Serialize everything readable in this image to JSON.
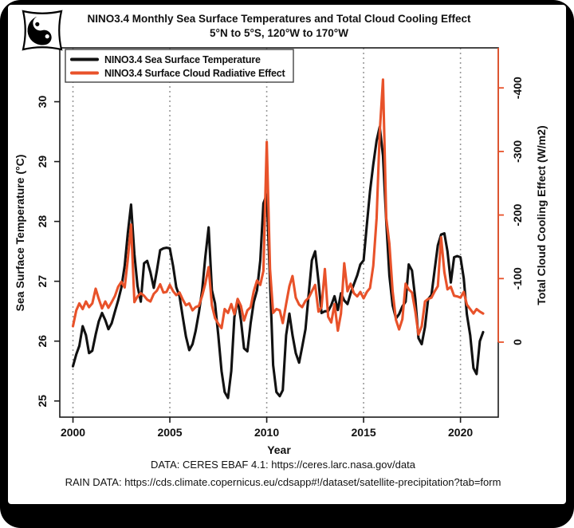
{
  "title": {
    "line1": "NINO3.4 Monthly Sea Surface Temperatures and Total Cloud Cooling Effect",
    "line2": "5°N to 5°S, 120°W to 170°W"
  },
  "legend": {
    "items": [
      {
        "label": "NINO3.4 Sea Surface Temperature",
        "color": "#111111"
      },
      {
        "label": "NINO3.4 Surface Cloud Radiative Effect",
        "color": "#E8522A"
      }
    ]
  },
  "footer": {
    "line1": "DATA: CERES EBAF 4.1: https://ceres.larc.nasa.gov/data",
    "line2": "RAIN DATA: https://cds.climate.copernicus.eu/cdsapp#!/dataset/satellite-precipitation?tab=form"
  },
  "colors": {
    "accent": "#E8522A",
    "line_black": "#111111",
    "grid": "#999999",
    "box": "#1a1a1a",
    "frame_background": "#000000",
    "sheet_background": "#ffffff"
  },
  "chart_data": {
    "type": "line",
    "title": "NINO3.4 Monthly Sea Surface Temperatures and Total Cloud Cooling Effect",
    "subtitle": "5°N to 5°S, 120°W to 170°W",
    "xlabel": "Year",
    "ylabel_left": "Sea Surface Temperature (°C)",
    "ylabel_right": "Total Cloud Cooling Effect (W/m2)",
    "legend_position": "top-left",
    "x_ticks": [
      2000,
      2005,
      2010,
      2015,
      2020
    ],
    "y_left_ticks": [
      25,
      26,
      27,
      28,
      29,
      30
    ],
    "y_right_ticks": [
      0,
      -100,
      -200,
      -300,
      -400
    ],
    "xlim": [
      1999.32,
      2021.95
    ],
    "ylim_left": [
      24.73,
      30.9
    ],
    "ylim_right": [
      118,
      -463
    ],
    "grid": {
      "vertical_dotted_at": [
        2000,
        2005,
        2010,
        2015,
        2020
      ],
      "color": "#999999"
    },
    "x": [
      2000,
      2000.17,
      2000.33,
      2000.5,
      2000.67,
      2000.83,
      2001,
      2001.17,
      2001.33,
      2001.5,
      2001.67,
      2001.83,
      2002,
      2002.17,
      2002.33,
      2002.5,
      2002.67,
      2002.83,
      2003,
      2003.17,
      2003.33,
      2003.5,
      2003.67,
      2003.83,
      2004,
      2004.17,
      2004.33,
      2004.5,
      2004.67,
      2004.83,
      2005,
      2005.17,
      2005.33,
      2005.5,
      2005.67,
      2005.83,
      2006,
      2006.17,
      2006.33,
      2006.5,
      2006.67,
      2006.83,
      2007,
      2007.17,
      2007.33,
      2007.5,
      2007.67,
      2007.83,
      2008,
      2008.17,
      2008.33,
      2008.5,
      2008.67,
      2008.83,
      2009,
      2009.17,
      2009.33,
      2009.5,
      2009.67,
      2009.83,
      2010,
      2010.17,
      2010.33,
      2010.5,
      2010.67,
      2010.83,
      2011,
      2011.17,
      2011.33,
      2011.5,
      2011.67,
      2011.83,
      2012,
      2012.17,
      2012.33,
      2012.5,
      2012.67,
      2012.83,
      2013,
      2013.17,
      2013.33,
      2013.5,
      2013.67,
      2013.83,
      2014,
      2014.17,
      2014.33,
      2014.5,
      2014.67,
      2014.83,
      2015,
      2015.17,
      2015.33,
      2015.5,
      2015.67,
      2015.83,
      2016,
      2016.17,
      2016.33,
      2016.5,
      2016.67,
      2016.83,
      2017,
      2017.17,
      2017.33,
      2017.5,
      2017.67,
      2017.83,
      2018,
      2018.17,
      2018.33,
      2018.5,
      2018.67,
      2018.83,
      2019,
      2019.17,
      2019.33,
      2019.5,
      2019.67,
      2019.83,
      2020,
      2020.17,
      2020.33,
      2020.5,
      2020.67,
      2020.83,
      2021,
      2021.17
    ],
    "series": [
      {
        "name": "NINO3.4 Sea Surface Temperature",
        "axis": "left",
        "units": "°C",
        "color": "#111111",
        "values": [
          25.58,
          25.78,
          25.92,
          26.25,
          26.1,
          25.8,
          25.84,
          26.11,
          26.33,
          26.47,
          26.35,
          26.2,
          26.3,
          26.5,
          26.68,
          26.9,
          27.26,
          27.8,
          28.28,
          27.45,
          26.92,
          26.66,
          27.3,
          27.34,
          27.15,
          26.89,
          27.18,
          27.52,
          27.55,
          27.56,
          27.55,
          27.25,
          26.9,
          26.75,
          26.4,
          26.08,
          25.85,
          25.95,
          26.17,
          26.48,
          26.85,
          27.4,
          27.9,
          26.85,
          26.63,
          26.1,
          25.5,
          25.15,
          25.05,
          25.5,
          26.4,
          26.7,
          26.35,
          25.88,
          25.83,
          26.3,
          26.65,
          26.85,
          27.35,
          28.3,
          28.45,
          27.0,
          25.6,
          25.15,
          25.08,
          25.18,
          26.1,
          26.46,
          26.1,
          25.8,
          25.64,
          25.9,
          26.2,
          26.8,
          27.35,
          27.5,
          27.0,
          26.47,
          26.5,
          26.5,
          26.6,
          26.75,
          26.52,
          26.8,
          26.68,
          26.62,
          26.8,
          26.95,
          27.1,
          27.28,
          27.35,
          27.95,
          28.5,
          28.95,
          29.35,
          29.58,
          29.1,
          28.0,
          27.1,
          26.6,
          26.38,
          26.45,
          26.58,
          26.66,
          27.28,
          27.18,
          26.7,
          26.05,
          25.95,
          26.24,
          26.7,
          26.77,
          27.2,
          27.6,
          27.78,
          27.8,
          27.5,
          26.98,
          27.4,
          27.42,
          27.4,
          27.05,
          26.45,
          26.1,
          25.55,
          25.45,
          26.0,
          26.15
        ]
      },
      {
        "name": "NINO3.4 Surface Cloud Radiative Effect",
        "axis": "right",
        "units": "W/m2",
        "color": "#E8522A",
        "values": [
          -25,
          -50,
          -61,
          -52,
          -64,
          -55,
          -61,
          -84,
          -68,
          -53,
          -64,
          -54,
          -63,
          -73,
          -87,
          -95,
          -86,
          -130,
          -185,
          -63,
          -72,
          -77,
          -73,
          -67,
          -64,
          -76,
          -81,
          -91,
          -78,
          -79,
          -90,
          -80,
          -74,
          -78,
          -67,
          -58,
          -61,
          -50,
          -55,
          -57,
          -73,
          -92,
          -118,
          -58,
          -38,
          -29,
          -22,
          -52,
          -46,
          -60,
          -44,
          -68,
          -57,
          -34,
          -50,
          -55,
          -80,
          -97,
          -90,
          -112,
          -315,
          -115,
          -46,
          -52,
          -50,
          -30,
          -60,
          -88,
          -104,
          -70,
          -59,
          -55,
          -65,
          -70,
          -80,
          -90,
          -48,
          -55,
          -115,
          -40,
          -31,
          -60,
          -18,
          -45,
          -124,
          -80,
          -92,
          -77,
          -72,
          -79,
          -69,
          -79,
          -85,
          -120,
          -195,
          -330,
          -413,
          -195,
          -155,
          -80,
          -35,
          -20,
          -36,
          -92,
          -83,
          -78,
          -48,
          -12,
          -25,
          -64,
          -68,
          -70,
          -80,
          -88,
          -165,
          -110,
          -83,
          -87,
          -73,
          -72,
          -70,
          -79,
          -59,
          -52,
          -45,
          -52,
          -48,
          -45
        ]
      }
    ]
  }
}
